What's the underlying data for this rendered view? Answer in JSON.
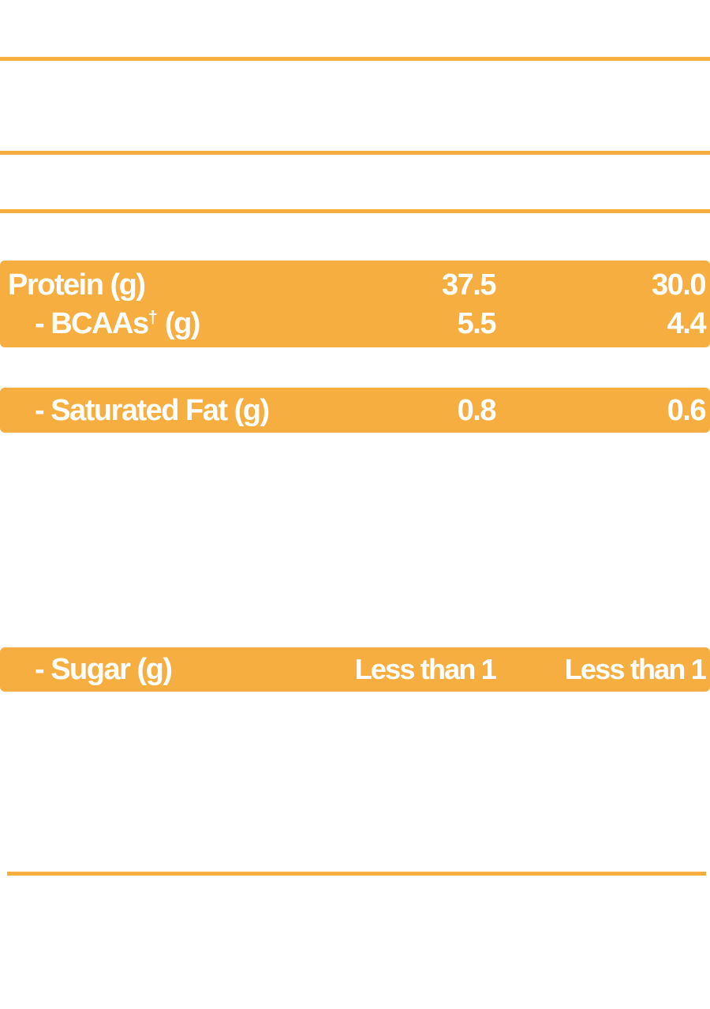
{
  "colors": {
    "accent": "#f6ae40",
    "text_on_accent": "#ffffff",
    "background": "#ffffff"
  },
  "rows": {
    "protein": {
      "label": "Protein (g)",
      "value_1": "37.5",
      "value_2": "30.0"
    },
    "bcaas": {
      "label": "- BCAAs",
      "label_sup": "†",
      "label_suffix": " (g)",
      "value_1": "5.5",
      "value_2": "4.4"
    },
    "saturated_fat": {
      "label": "- Saturated Fat (g)",
      "value_1": "0.8",
      "value_2": "0.6"
    },
    "sugar": {
      "label": "- Sugar (g)",
      "value_1": "Less than 1",
      "value_2": "Less than 1"
    }
  }
}
